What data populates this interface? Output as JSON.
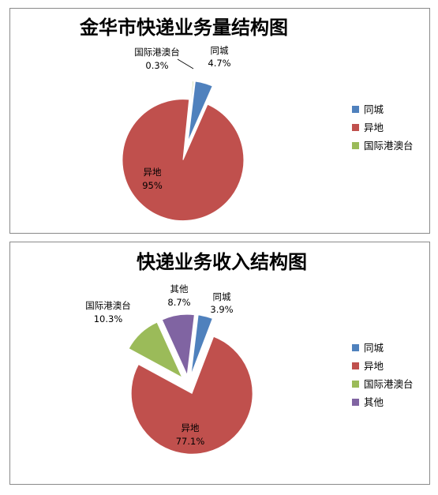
{
  "chart_data": [
    {
      "type": "pie",
      "title": "金华市快递业务量结构图",
      "slices": [
        {
          "name": "同城",
          "label": "同城",
          "value": 4.7,
          "value_label": "4.7%",
          "color": "#4F81BD"
        },
        {
          "name": "异地",
          "label": "异地",
          "value": 95,
          "value_label": "95%",
          "color": "#C0504D"
        },
        {
          "name": "国际港澳台",
          "label": "国际港澳台",
          "value": 0.3,
          "value_label": "0.3%",
          "color": "#9BBB59"
        }
      ],
      "legend": [
        "同城",
        "异地",
        "国际港澳台"
      ],
      "legend_position": "right",
      "exploded": true
    },
    {
      "type": "pie",
      "title": "快递业务收入结构图",
      "slices": [
        {
          "name": "同城",
          "label": "同城",
          "value": 3.9,
          "value_label": "3.9%",
          "color": "#4F81BD"
        },
        {
          "name": "异地",
          "label": "异地",
          "value": 77.1,
          "value_label": "77.1%",
          "color": "#C0504D"
        },
        {
          "name": "国际港澳台",
          "label": "国际港澳台",
          "value": 10.3,
          "value_label": "10.3%",
          "color": "#9BBB59"
        },
        {
          "name": "其他",
          "label": "其他",
          "value": 8.7,
          "value_label": "8.7%",
          "color": "#8064A2"
        }
      ],
      "legend": [
        "同城",
        "异地",
        "国际港澳台",
        "其他"
      ],
      "legend_position": "right",
      "exploded": true
    }
  ]
}
